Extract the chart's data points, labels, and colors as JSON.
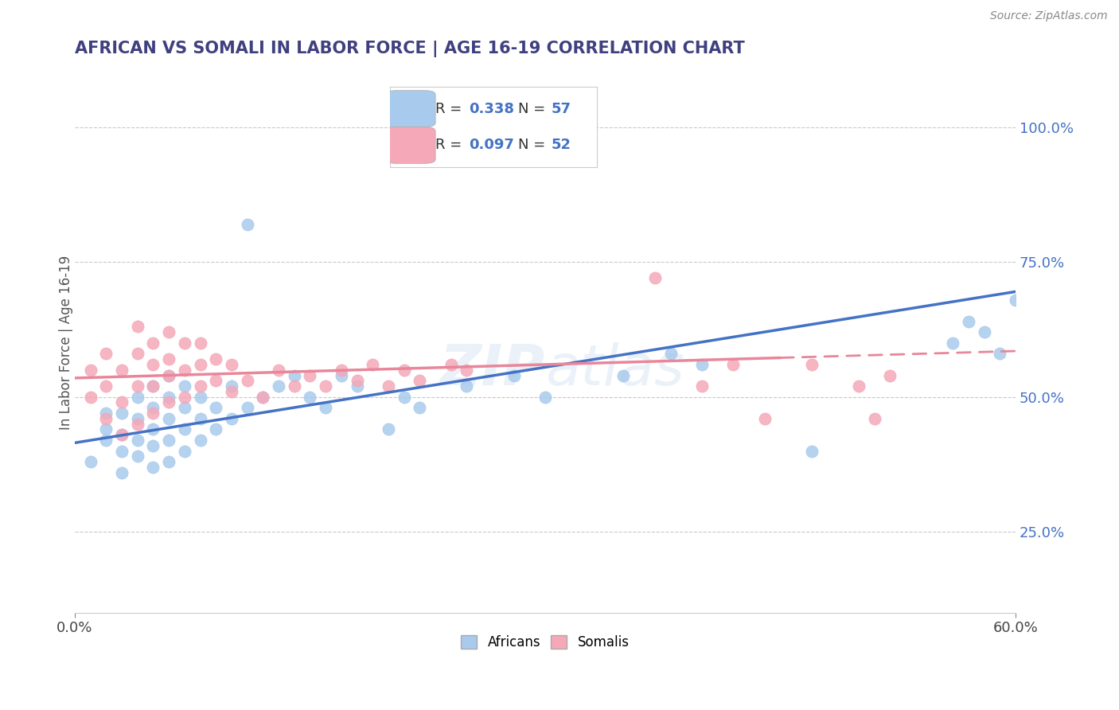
{
  "title": "AFRICAN VS SOMALI IN LABOR FORCE | AGE 16-19 CORRELATION CHART",
  "source_text": "Source: ZipAtlas.com",
  "ylabel": "In Labor Force | Age 16-19",
  "xlim": [
    0.0,
    0.6
  ],
  "ylim": [
    0.1,
    1.1
  ],
  "xticks": [
    0.0,
    0.6
  ],
  "xticklabels": [
    "0.0%",
    "60.0%"
  ],
  "yticks_right": [
    0.25,
    0.5,
    0.75,
    1.0
  ],
  "yticklabels_right": [
    "25.0%",
    "50.0%",
    "75.0%",
    "100.0%"
  ],
  "african_color": "#A8CAEC",
  "somali_color": "#F4A8B8",
  "african_R": 0.338,
  "african_N": 57,
  "somali_R": 0.097,
  "somali_N": 52,
  "trend_african_color": "#4472C4",
  "trend_somali_color": "#E8869A",
  "background_color": "#FFFFFF",
  "grid_color": "#BBBBBB",
  "watermark_text": "ZIPAtlas",
  "title_color": "#404080",
  "legend_R_color": "#4472C4",
  "africans_data_x": [
    0.01,
    0.02,
    0.02,
    0.02,
    0.03,
    0.03,
    0.03,
    0.03,
    0.04,
    0.04,
    0.04,
    0.04,
    0.05,
    0.05,
    0.05,
    0.05,
    0.05,
    0.06,
    0.06,
    0.06,
    0.06,
    0.06,
    0.07,
    0.07,
    0.07,
    0.07,
    0.08,
    0.08,
    0.08,
    0.09,
    0.09,
    0.1,
    0.1,
    0.11,
    0.11,
    0.12,
    0.13,
    0.14,
    0.15,
    0.16,
    0.17,
    0.18,
    0.2,
    0.21,
    0.22,
    0.25,
    0.28,
    0.3,
    0.35,
    0.38,
    0.4,
    0.47,
    0.56,
    0.57,
    0.58,
    0.59,
    0.6
  ],
  "africans_data_y": [
    0.38,
    0.42,
    0.44,
    0.47,
    0.36,
    0.4,
    0.43,
    0.47,
    0.39,
    0.42,
    0.46,
    0.5,
    0.37,
    0.41,
    0.44,
    0.48,
    0.52,
    0.38,
    0.42,
    0.46,
    0.5,
    0.54,
    0.4,
    0.44,
    0.48,
    0.52,
    0.42,
    0.46,
    0.5,
    0.44,
    0.48,
    0.46,
    0.52,
    0.48,
    0.82,
    0.5,
    0.52,
    0.54,
    0.5,
    0.48,
    0.54,
    0.52,
    0.44,
    0.5,
    0.48,
    0.52,
    0.54,
    0.5,
    0.54,
    0.58,
    0.56,
    0.4,
    0.6,
    0.64,
    0.62,
    0.58,
    0.68
  ],
  "somalis_data_x": [
    0.01,
    0.01,
    0.02,
    0.02,
    0.02,
    0.03,
    0.03,
    0.03,
    0.04,
    0.04,
    0.04,
    0.04,
    0.05,
    0.05,
    0.05,
    0.05,
    0.06,
    0.06,
    0.06,
    0.06,
    0.07,
    0.07,
    0.07,
    0.08,
    0.08,
    0.08,
    0.09,
    0.09,
    0.1,
    0.1,
    0.11,
    0.12,
    0.13,
    0.14,
    0.15,
    0.16,
    0.17,
    0.18,
    0.19,
    0.2,
    0.21,
    0.22,
    0.24,
    0.25,
    0.37,
    0.4,
    0.42,
    0.44,
    0.47,
    0.5,
    0.51,
    0.52
  ],
  "somalis_data_y": [
    0.5,
    0.55,
    0.46,
    0.52,
    0.58,
    0.43,
    0.49,
    0.55,
    0.45,
    0.52,
    0.58,
    0.63,
    0.47,
    0.52,
    0.56,
    0.6,
    0.49,
    0.54,
    0.57,
    0.62,
    0.5,
    0.55,
    0.6,
    0.52,
    0.56,
    0.6,
    0.53,
    0.57,
    0.51,
    0.56,
    0.53,
    0.5,
    0.55,
    0.52,
    0.54,
    0.52,
    0.55,
    0.53,
    0.56,
    0.52,
    0.55,
    0.53,
    0.56,
    0.55,
    0.72,
    0.52,
    0.56,
    0.46,
    0.56,
    0.52,
    0.46,
    0.54
  ],
  "trend_african_x0": 0.0,
  "trend_african_y0": 0.415,
  "trend_african_x1": 0.6,
  "trend_african_y1": 0.695,
  "trend_somali_x0": 0.0,
  "trend_somali_y0": 0.535,
  "trend_somali_x1": 0.6,
  "trend_somali_y1": 0.585,
  "trend_somali_solid_end": 0.45
}
